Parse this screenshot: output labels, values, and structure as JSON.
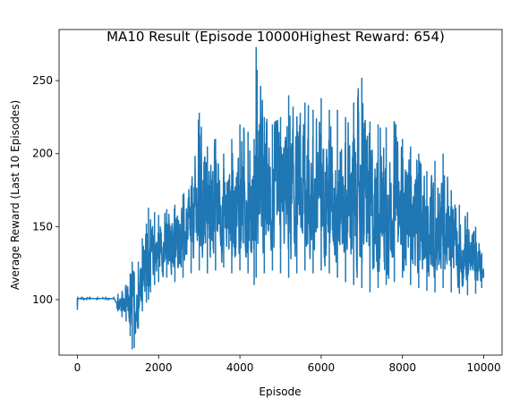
{
  "chart_data": {
    "type": "line",
    "title": "MA10 Result (Episode 10000Highest Reward: 654)",
    "xlabel": "Episode",
    "ylabel": "Average Reward (Last 10 Episodes)",
    "xlim": [
      -450,
      10450
    ],
    "ylim": [
      62,
      285
    ],
    "xticks": [
      0,
      2000,
      4000,
      6000,
      8000,
      10000
    ],
    "xtick_labels": [
      "0",
      "2000",
      "4000",
      "6000",
      "8000",
      "10000"
    ],
    "yticks": [
      100,
      150,
      200,
      250
    ],
    "ytick_labels": [
      "100",
      "150",
      "200",
      "250"
    ],
    "grid": false,
    "legend": "none",
    "series": [
      {
        "name": "MA10",
        "color": "#1f77b4",
        "n_points": 10000,
        "envelope": {
          "x": [
            0,
            10,
            100,
            300,
            500,
            700,
            900,
            1000,
            1100,
            1200,
            1300,
            1350,
            1400,
            1500,
            1600,
            1700,
            1750,
            1800,
            1900,
            2000,
            2200,
            2400,
            2600,
            2800,
            3000,
            3200,
            3400,
            3600,
            3800,
            4000,
            4200,
            4350,
            4400,
            4600,
            4800,
            5000,
            5200,
            5400,
            5600,
            5800,
            6000,
            6200,
            6400,
            6600,
            6800,
            7000,
            7200,
            7400,
            7600,
            7800,
            8000,
            8200,
            8400,
            8600,
            8800,
            9000,
            9200,
            9400,
            9600,
            9800,
            9950
          ],
          "low": [
            93,
            100,
            100,
            100,
            100,
            100,
            100,
            92,
            88,
            85,
            75,
            66,
            67,
            80,
            92,
            98,
            100,
            105,
            110,
            112,
            115,
            112,
            115,
            118,
            120,
            118,
            120,
            122,
            118,
            120,
            118,
            110,
            115,
            118,
            120,
            118,
            115,
            118,
            120,
            118,
            120,
            118,
            115,
            112,
            110,
            108,
            105,
            108,
            110,
            112,
            115,
            110,
            108,
            106,
            105,
            108,
            105,
            104,
            103,
            104,
            108
          ],
          "high": [
            101,
            102,
            102,
            102,
            102,
            102,
            102,
            104,
            106,
            110,
            118,
            126,
            118,
            126,
            142,
            152,
            163,
            155,
            160,
            158,
            162,
            165,
            172,
            178,
            228,
            205,
            210,
            200,
            210,
            220,
            215,
            210,
            273,
            225,
            220,
            225,
            240,
            225,
            235,
            230,
            238,
            230,
            230,
            225,
            235,
            252,
            222,
            220,
            218,
            222,
            210,
            205,
            200,
            188,
            195,
            200,
            175,
            165,
            160,
            150,
            132
          ]
        }
      }
    ]
  }
}
